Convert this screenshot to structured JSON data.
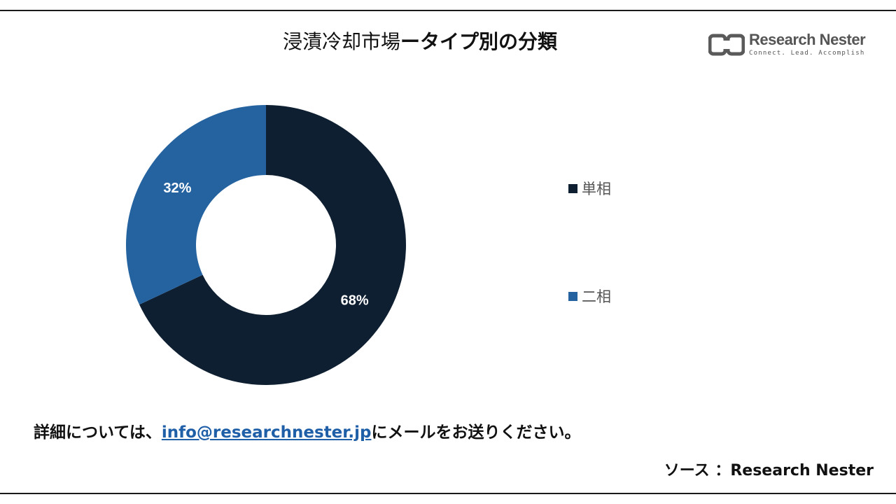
{
  "title": {
    "part1": "浸漬冷却市場",
    "part2": "ータイプ別の分類"
  },
  "logo": {
    "name": "Research Nester",
    "tagline": "Connect. Lead. Accomplish"
  },
  "chart_data": {
    "type": "pie",
    "donut": true,
    "title": "",
    "categories": [
      "単相",
      "二相"
    ],
    "values": [
      68,
      32
    ],
    "labels": [
      "68%",
      "32%"
    ],
    "colors": [
      "#0e1f31",
      "#2463a0"
    ],
    "legend": "right"
  },
  "footer": {
    "prefix": "詳細については、",
    "email": "info@researchnester.jp",
    "suffix": "にメールをお送りください。"
  },
  "source": "ソース ：Research Nester"
}
